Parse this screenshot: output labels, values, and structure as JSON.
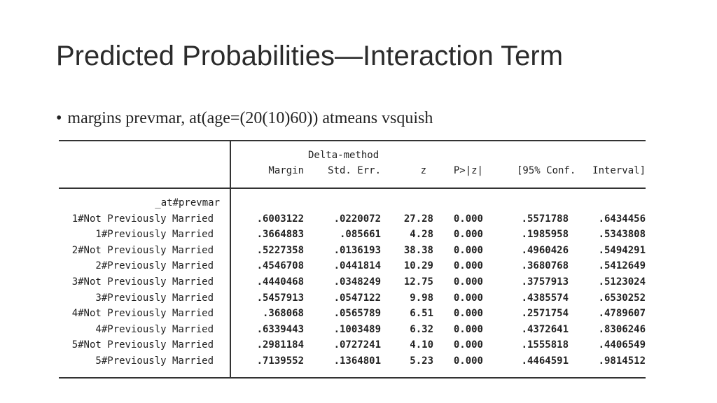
{
  "title": "Predicted Probabilities—Interaction Term",
  "bullet": {
    "symbol": "•",
    "command": "margins prevmar, at(age=(20(10)60)) atmeans vsquish"
  },
  "table": {
    "header_top": "Delta-method",
    "columns": [
      "Margin",
      "Std. Err.",
      "z",
      "P>|z|",
      "[95% Conf.",
      "Interval]"
    ],
    "row_group": "_at#prevmar",
    "rows": [
      {
        "label": "1#Not Previously Married",
        "margin": ".6003122",
        "se": ".0220072",
        "z": "27.28",
        "p": "0.000",
        "lo": ".5571788",
        "hi": ".6434456"
      },
      {
        "label": "1#Previously Married",
        "margin": ".3664883",
        "se": ".085661",
        "z": "4.28",
        "p": "0.000",
        "lo": ".1985958",
        "hi": ".5343808"
      },
      {
        "label": "2#Not Previously Married",
        "margin": ".5227358",
        "se": ".0136193",
        "z": "38.38",
        "p": "0.000",
        "lo": ".4960426",
        "hi": ".5494291"
      },
      {
        "label": "2#Previously Married",
        "margin": ".4546708",
        "se": ".0441814",
        "z": "10.29",
        "p": "0.000",
        "lo": ".3680768",
        "hi": ".5412649"
      },
      {
        "label": "3#Not Previously Married",
        "margin": ".4440468",
        "se": ".0348249",
        "z": "12.75",
        "p": "0.000",
        "lo": ".3757913",
        "hi": ".5123024"
      },
      {
        "label": "3#Previously Married",
        "margin": ".5457913",
        "se": ".0547122",
        "z": "9.98",
        "p": "0.000",
        "lo": ".4385574",
        "hi": ".6530252"
      },
      {
        "label": "4#Not Previously Married",
        "margin": ".368068",
        "se": ".0565789",
        "z": "6.51",
        "p": "0.000",
        "lo": ".2571754",
        "hi": ".4789607"
      },
      {
        "label": "4#Previously Married",
        "margin": ".6339443",
        "se": ".1003489",
        "z": "6.32",
        "p": "0.000",
        "lo": ".4372641",
        "hi": ".8306246"
      },
      {
        "label": "5#Not Previously Married",
        "margin": ".2981184",
        "se": ".0727241",
        "z": "4.10",
        "p": "0.000",
        "lo": ".1555818",
        "hi": ".4406549"
      },
      {
        "label": "5#Previously Married",
        "margin": ".7139552",
        "se": ".1364801",
        "z": "5.23",
        "p": "0.000",
        "lo": ".4464591",
        "hi": ".9814512"
      }
    ]
  }
}
